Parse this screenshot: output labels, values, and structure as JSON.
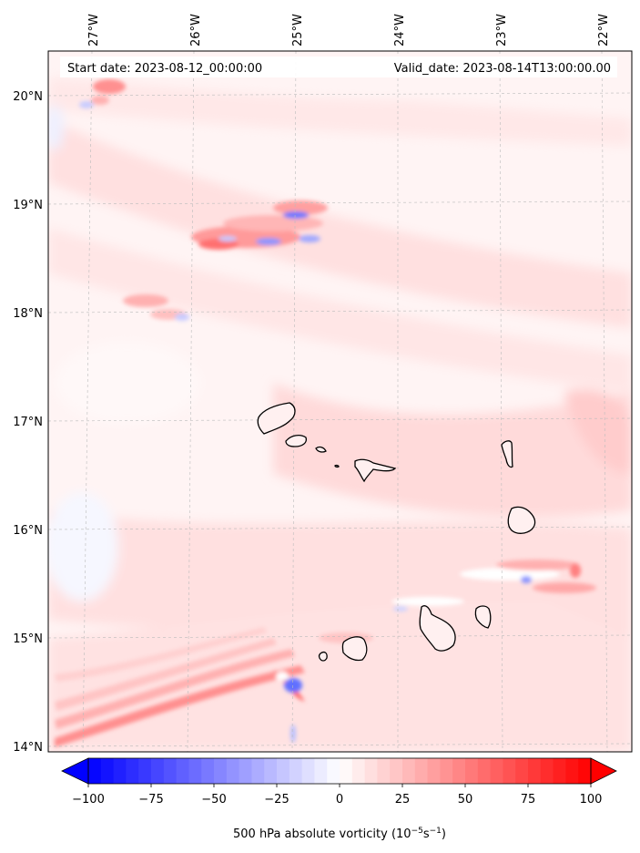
{
  "map": {
    "start_date_label": "Start date: 2023-08-12_00:00:00",
    "valid_date_label": "Valid_date: 2023-08-14T13:00:00.00",
    "lon_ticks": [
      {
        "label": "27°W",
        "value": -27
      },
      {
        "label": "26°W",
        "value": -26
      },
      {
        "label": "25°W",
        "value": -25
      },
      {
        "label": "24°W",
        "value": -24
      },
      {
        "label": "23°W",
        "value": -23
      },
      {
        "label": "22°W",
        "value": -22
      }
    ],
    "lat_ticks": [
      {
        "label": "20°N",
        "value": 20
      },
      {
        "label": "19°N",
        "value": 19
      },
      {
        "label": "18°N",
        "value": 18
      },
      {
        "label": "17°N",
        "value": 17
      },
      {
        "label": "16°N",
        "value": 16
      },
      {
        "label": "15°N",
        "value": 15
      },
      {
        "label": "14°N",
        "value": 14
      }
    ],
    "gridlines": true,
    "islands": [
      "Santo Antão",
      "São Vicente",
      "Santa Luzia",
      "Branco",
      "São Nicolau",
      "Sal",
      "Boa Vista",
      "Maio",
      "Santiago",
      "Fogo",
      "Brava"
    ]
  },
  "colorbar": {
    "title": "500 hPa absolute vorticity (10",
    "title_exp1": "−5",
    "title_mid": "s",
    "title_exp2": "−1",
    "title_end": ")",
    "min": -100,
    "max": 100,
    "ticks": [
      {
        "label": "−100",
        "value": -100
      },
      {
        "label": "−75",
        "value": -75
      },
      {
        "label": "−50",
        "value": -50
      },
      {
        "label": "−25",
        "value": -25
      },
      {
        "label": "0",
        "value": 0
      },
      {
        "label": "25",
        "value": 25
      },
      {
        "label": "50",
        "value": 50
      },
      {
        "label": "75",
        "value": 75
      },
      {
        "label": "100",
        "value": 100
      }
    ],
    "extend": "both",
    "colormap": "bwr",
    "low_color": "#0000ff",
    "mid_color": "#ffffff",
    "high_color": "#ff0000"
  }
}
